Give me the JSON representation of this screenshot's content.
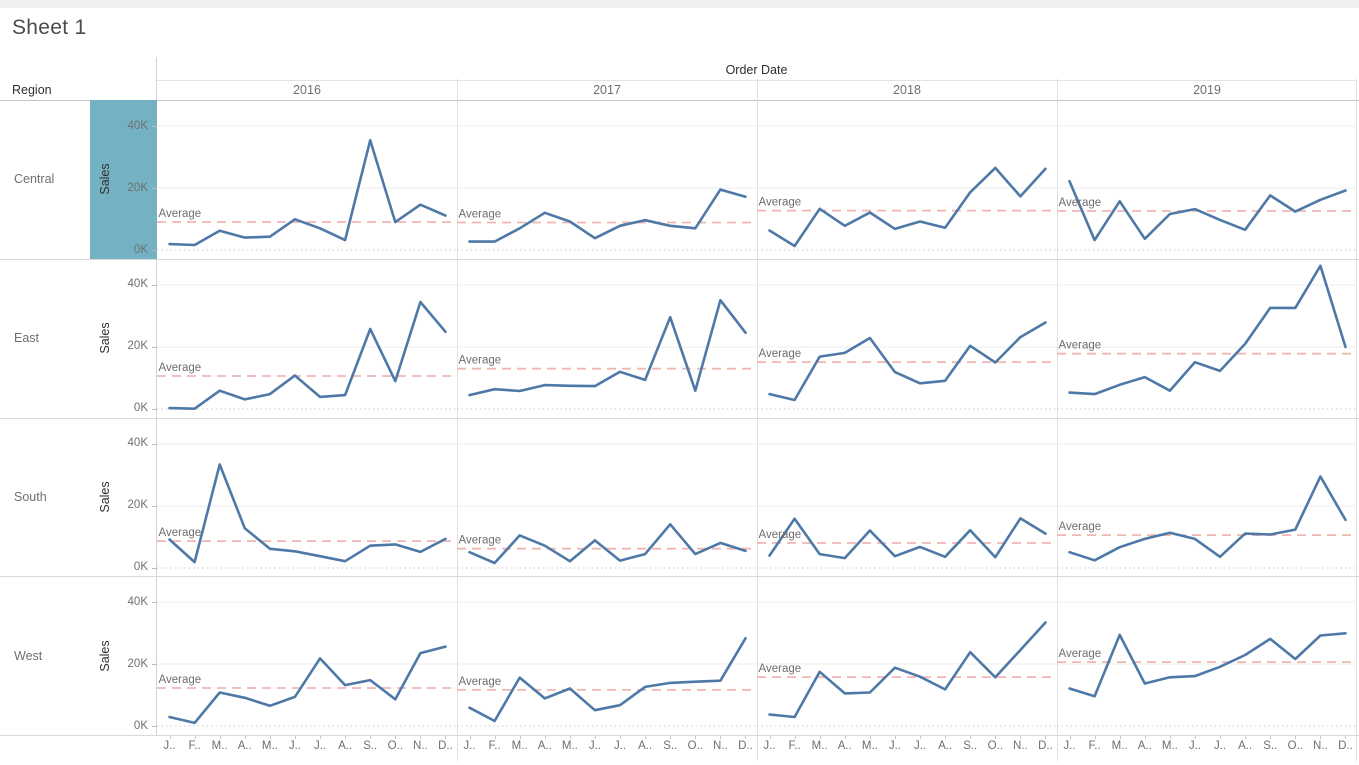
{
  "chart_data": {
    "type": "line",
    "title": "Sheet 1",
    "facet_row_field": "Region",
    "facet_col_field": "Order Date",
    "rows": [
      "Central",
      "East",
      "South",
      "West"
    ],
    "columns": [
      "2016",
      "2017",
      "2018",
      "2019"
    ],
    "ylabel": "Sales",
    "ylim": [
      0,
      48000
    ],
    "yticks": [
      {
        "value": 0,
        "label": "0K"
      },
      {
        "value": 20000,
        "label": "20K"
      },
      {
        "value": 40000,
        "label": "40K"
      }
    ],
    "x_tick_labels": [
      "J..",
      "F..",
      "M..",
      "A..",
      "M..",
      "J..",
      "J..",
      "A..",
      "S..",
      "O..",
      "N..",
      "D.."
    ],
    "ref_line_label": "Average",
    "ref_line_type": "average-per-cell",
    "grid": true,
    "legend": "none",
    "highlighted_axis": {
      "region": "Central",
      "field": "Sales"
    },
    "colors": {
      "line": "#4e79a7",
      "ref_line": "#f0b6b2",
      "axis_highlight": "#74b2c3",
      "zero_line": "#c9c9c9",
      "gridline": "#ececec"
    },
    "series": [
      {
        "region": "Central",
        "year": "2016",
        "values": [
          1900,
          1600,
          6200,
          4000,
          4300,
          9900,
          7000,
          3200,
          35400,
          9000,
          14600,
          11100
        ]
      },
      {
        "region": "Central",
        "year": "2017",
        "values": [
          2700,
          2700,
          7000,
          12000,
          9200,
          3800,
          7800,
          9600,
          7800,
          7000,
          19500,
          17200
        ]
      },
      {
        "region": "Central",
        "year": "2018",
        "values": [
          6300,
          1300,
          13300,
          7800,
          12100,
          6800,
          9200,
          7200,
          18600,
          26500,
          17300,
          26200
        ]
      },
      {
        "region": "Central",
        "year": "2019",
        "values": [
          22200,
          3200,
          15700,
          3600,
          11600,
          13200,
          9700,
          6500,
          17600,
          12400,
          16200,
          19200
        ]
      },
      {
        "region": "East",
        "year": "2016",
        "values": [
          300,
          100,
          5900,
          3100,
          4800,
          10800,
          3900,
          4500,
          25800,
          9000,
          34500,
          24900
        ]
      },
      {
        "region": "East",
        "year": "2017",
        "values": [
          4500,
          6400,
          5800,
          7700,
          7500,
          7400,
          12000,
          9400,
          29600,
          5900,
          35100,
          24600
        ]
      },
      {
        "region": "East",
        "year": "2018",
        "values": [
          4800,
          2900,
          16900,
          18100,
          22900,
          11900,
          8300,
          9100,
          20400,
          15000,
          23200,
          27900
        ]
      },
      {
        "region": "East",
        "year": "2019",
        "values": [
          5300,
          4800,
          7800,
          10300,
          5900,
          15100,
          12300,
          21000,
          32600,
          32600,
          46200,
          20000
        ]
      },
      {
        "region": "South",
        "year": "2016",
        "values": [
          9200,
          1900,
          33400,
          12800,
          6200,
          5400,
          3800,
          2200,
          7200,
          7600,
          5200,
          9400
        ]
      },
      {
        "region": "South",
        "year": "2017",
        "values": [
          5100,
          1600,
          10500,
          7200,
          2200,
          8900,
          2400,
          4500,
          14100,
          4500,
          8100,
          5500
        ]
      },
      {
        "region": "South",
        "year": "2018",
        "values": [
          4000,
          15900,
          4500,
          3200,
          12100,
          3800,
          6800,
          3600,
          12200,
          3500,
          16000,
          11100
        ]
      },
      {
        "region": "South",
        "year": "2019",
        "values": [
          5100,
          2500,
          6700,
          9400,
          11400,
          9400,
          3600,
          11100,
          10800,
          12400,
          29500,
          15500
        ]
      },
      {
        "region": "West",
        "year": "2016",
        "values": [
          2900,
          1000,
          10800,
          9100,
          6500,
          9400,
          21800,
          13200,
          14800,
          8600,
          23500,
          25600
        ]
      },
      {
        "region": "West",
        "year": "2017",
        "values": [
          5900,
          1600,
          15600,
          8900,
          12100,
          5100,
          6700,
          12600,
          13900,
          14300,
          14600,
          28300
        ]
      },
      {
        "region": "West",
        "year": "2018",
        "values": [
          3700,
          2900,
          17500,
          10500,
          10800,
          18800,
          15900,
          11800,
          23800,
          15700,
          24500,
          33400
        ]
      },
      {
        "region": "West",
        "year": "2019",
        "values": [
          12100,
          9600,
          29400,
          13700,
          15700,
          16100,
          19100,
          22900,
          28100,
          21600,
          29200,
          29900
        ]
      }
    ]
  }
}
